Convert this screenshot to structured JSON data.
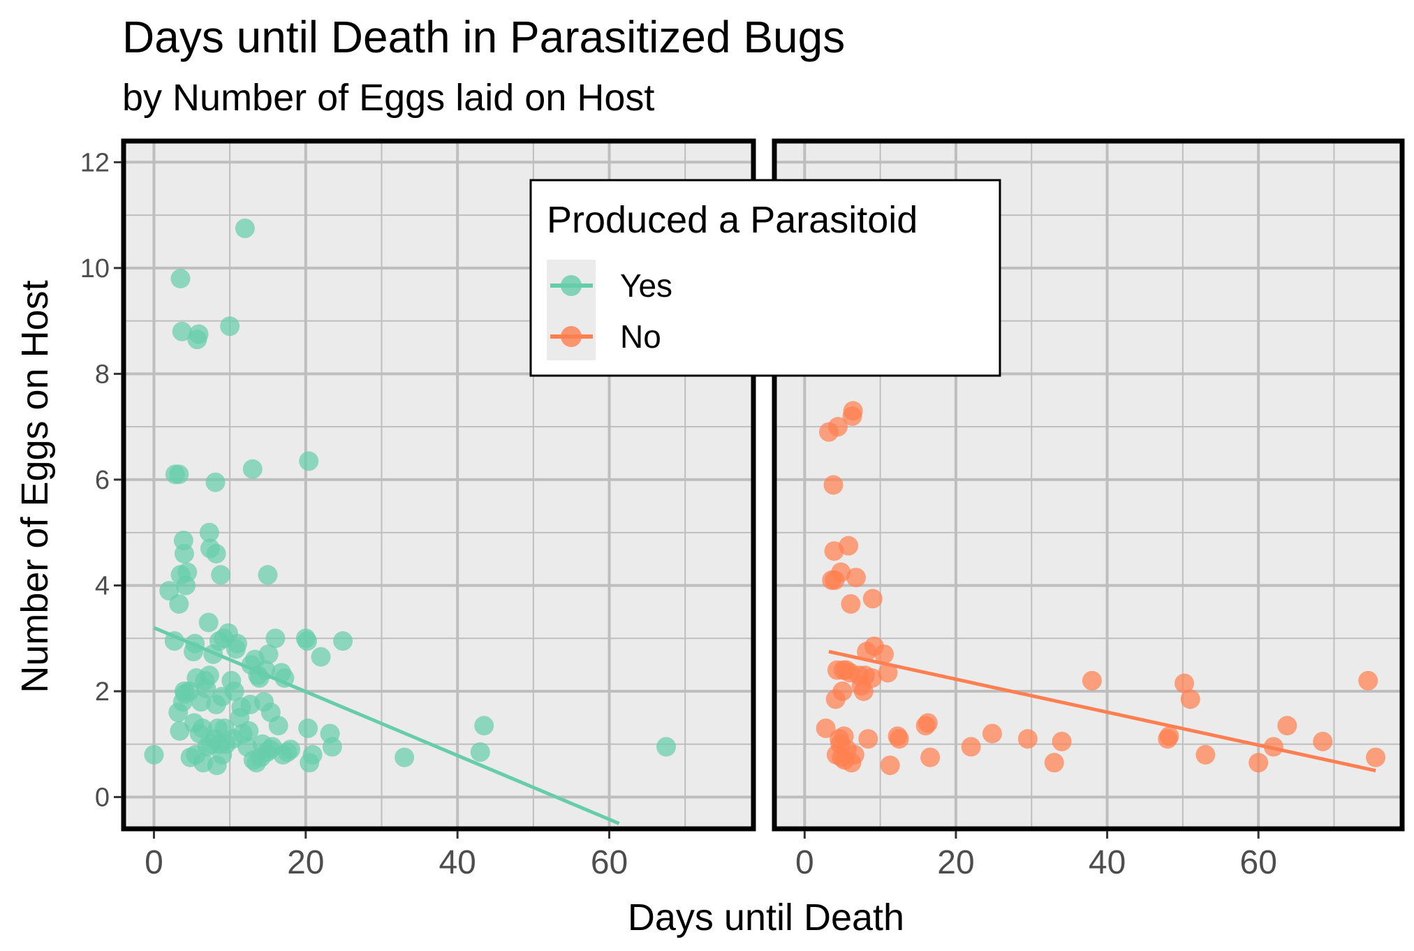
{
  "title": "Days until Death in Parasitized Bugs",
  "subtitle": "by Number of Eggs laid on Host",
  "colors": {
    "yes": "#66cdaa",
    "no": "#ff7f50",
    "panel": "#ebebeb",
    "grid": "#bebebe"
  },
  "legend": {
    "title": "Produced a Parasitoid",
    "items": [
      {
        "label": "Yes",
        "color": "#66cdaa"
      },
      {
        "label": "No",
        "color": "#ff7f50"
      }
    ]
  },
  "chart_data": {
    "type": "scatter",
    "xlabel": "Days until Death",
    "ylabel": "Number of Eggs on Host",
    "xlim": [
      -4,
      79
    ],
    "ylim": [
      -0.6,
      12.4
    ],
    "xticks": [
      0,
      20,
      40,
      60
    ],
    "yticks": [
      0,
      2,
      4,
      6,
      8,
      10,
      12
    ],
    "grid": true,
    "legend_position": "top-center",
    "facets": [
      {
        "name": "Yes",
        "color": "#66cdaa",
        "trend": {
          "x": [
            0,
            61.3
          ],
          "y": [
            3.2,
            -0.5
          ]
        },
        "points": [
          [
            0,
            0.8
          ],
          [
            2,
            3.9
          ],
          [
            2.7,
            2.95
          ],
          [
            2.8,
            6.1
          ],
          [
            3.2,
            1.6
          ],
          [
            3.3,
            6.1
          ],
          [
            3.3,
            3.65
          ],
          [
            3.4,
            1.25
          ],
          [
            3.5,
            4.2
          ],
          [
            3.5,
            9.8
          ],
          [
            3.7,
            8.8
          ],
          [
            3.8,
            1.8
          ],
          [
            3.9,
            4.85
          ],
          [
            4,
            4.6
          ],
          [
            4,
            2.0
          ],
          [
            4.1,
            1.95
          ],
          [
            4.2,
            4.0
          ],
          [
            4.4,
            4.25
          ],
          [
            4.7,
            2.0
          ],
          [
            4.8,
            0.75
          ],
          [
            5.2,
            2.75
          ],
          [
            5.3,
            1.4
          ],
          [
            5.4,
            2.9
          ],
          [
            5.5,
            0.8
          ],
          [
            5.6,
            2.25
          ],
          [
            5.7,
            8.65
          ],
          [
            5.9,
            8.75
          ],
          [
            6,
            1.2
          ],
          [
            6.2,
            1.8
          ],
          [
            6.4,
            1.3
          ],
          [
            6.5,
            0.65
          ],
          [
            6.7,
            2.2
          ],
          [
            6.9,
            2.05
          ],
          [
            7,
            0.95
          ],
          [
            7.2,
            3.3
          ],
          [
            7.3,
            2.3
          ],
          [
            7.3,
            5.0
          ],
          [
            7.4,
            4.7
          ],
          [
            7.5,
            1.0
          ],
          [
            7.8,
            2.7
          ],
          [
            8.0,
            1.1
          ],
          [
            8.1,
            5.95
          ],
          [
            8.2,
            1.75
          ],
          [
            8.2,
            4.6
          ],
          [
            8.3,
            0.6
          ],
          [
            8.4,
            1.3
          ],
          [
            8.6,
            2.95
          ],
          [
            8.7,
            1.0
          ],
          [
            8.8,
            4.2
          ],
          [
            9,
            1.9
          ],
          [
            9,
            0.8
          ],
          [
            9.2,
            3.0
          ],
          [
            9.3,
            1.3
          ],
          [
            9.5,
            1.0
          ],
          [
            9.8,
            3.1
          ],
          [
            10,
            8.9
          ],
          [
            10.2,
            2.2
          ],
          [
            10.4,
            1.1
          ],
          [
            10.6,
            2.0
          ],
          [
            10.8,
            2.8
          ],
          [
            11,
            2.9
          ],
          [
            11.3,
            1.5
          ],
          [
            11.5,
            1.7
          ],
          [
            11.7,
            1.2
          ],
          [
            12,
            10.75
          ],
          [
            12.3,
            0.95
          ],
          [
            12.5,
            1.25
          ],
          [
            12.7,
            1.75
          ],
          [
            12.8,
            2.5
          ],
          [
            13.0,
            6.2
          ],
          [
            13.1,
            0.7
          ],
          [
            13.3,
            2.6
          ],
          [
            13.5,
            0.65
          ],
          [
            13.7,
            2.3
          ],
          [
            13.9,
            2.25
          ],
          [
            14.1,
            0.75
          ],
          [
            14.3,
            1.0
          ],
          [
            14.5,
            1.8
          ],
          [
            14.7,
            2.4
          ],
          [
            14.9,
            0.85
          ],
          [
            15.0,
            4.2
          ],
          [
            15.1,
            2.7
          ],
          [
            15.3,
            0.9
          ],
          [
            15.4,
            1.6
          ],
          [
            15.6,
            0.95
          ],
          [
            16.0,
            3.0
          ],
          [
            16.4,
            1.35
          ],
          [
            16.8,
            2.35
          ],
          [
            17.0,
            0.8
          ],
          [
            17.2,
            2.25
          ],
          [
            17.6,
            0.85
          ],
          [
            18.0,
            0.9
          ],
          [
            20.0,
            3.0
          ],
          [
            20.2,
            2.95
          ],
          [
            20.3,
            1.3
          ],
          [
            20.4,
            6.35
          ],
          [
            20.5,
            0.65
          ],
          [
            20.9,
            0.8
          ],
          [
            22.0,
            2.65
          ],
          [
            23.2,
            1.2
          ],
          [
            23.5,
            0.95
          ],
          [
            24.9,
            2.95
          ],
          [
            33.0,
            0.75
          ],
          [
            43.0,
            0.85
          ],
          [
            43.5,
            1.35
          ],
          [
            67.5,
            0.95
          ]
        ]
      },
      {
        "name": "No",
        "color": "#ff7f50",
        "trend": {
          "x": [
            3.2,
            75.5
          ],
          "y": [
            2.75,
            0.5
          ]
        },
        "points": [
          [
            2.8,
            1.3
          ],
          [
            3.2,
            6.9
          ],
          [
            3.6,
            4.1
          ],
          [
            3.8,
            5.9
          ],
          [
            3.9,
            4.65
          ],
          [
            4.0,
            4.1
          ],
          [
            4.1,
            1.85
          ],
          [
            4.2,
            0.8
          ],
          [
            4.3,
            2.4
          ],
          [
            4.4,
            7.0
          ],
          [
            4.6,
            1.1
          ],
          [
            4.7,
            1.0
          ],
          [
            4.8,
            4.25
          ],
          [
            4.9,
            0.75
          ],
          [
            5.0,
            2.0
          ],
          [
            5.1,
            2.4
          ],
          [
            5.2,
            1.15
          ],
          [
            5.3,
            0.7
          ],
          [
            5.5,
            2.4
          ],
          [
            5.6,
            0.9
          ],
          [
            5.8,
            4.75
          ],
          [
            6.0,
            2.35
          ],
          [
            6.1,
            3.65
          ],
          [
            6.2,
            0.65
          ],
          [
            6.3,
            7.2
          ],
          [
            6.4,
            7.3
          ],
          [
            6.6,
            0.8
          ],
          [
            6.8,
            4.15
          ],
          [
            7.2,
            2.3
          ],
          [
            7.5,
            2.1
          ],
          [
            7.8,
            2.0
          ],
          [
            8.0,
            2.3
          ],
          [
            8.2,
            2.75
          ],
          [
            8.4,
            1.1
          ],
          [
            8.9,
            2.25
          ],
          [
            9.0,
            3.75
          ],
          [
            9.2,
            2.85
          ],
          [
            10.5,
            2.7
          ],
          [
            11.0,
            2.35
          ],
          [
            11.3,
            0.6
          ],
          [
            12.3,
            1.15
          ],
          [
            12.5,
            1.1
          ],
          [
            16.0,
            1.35
          ],
          [
            16.3,
            1.4
          ],
          [
            16.6,
            0.75
          ],
          [
            22.0,
            0.95
          ],
          [
            24.8,
            1.2
          ],
          [
            29.5,
            1.1
          ],
          [
            33.0,
            0.65
          ],
          [
            34.0,
            1.05
          ],
          [
            38.0,
            2.2
          ],
          [
            48.0,
            1.1
          ],
          [
            48.2,
            1.15
          ],
          [
            50.2,
            2.15
          ],
          [
            51.0,
            1.85
          ],
          [
            53.0,
            0.8
          ],
          [
            60.0,
            0.65
          ],
          [
            62.0,
            0.95
          ],
          [
            63.8,
            1.35
          ],
          [
            68.5,
            1.05
          ],
          [
            74.5,
            2.2
          ],
          [
            75.5,
            0.75
          ]
        ]
      }
    ]
  }
}
